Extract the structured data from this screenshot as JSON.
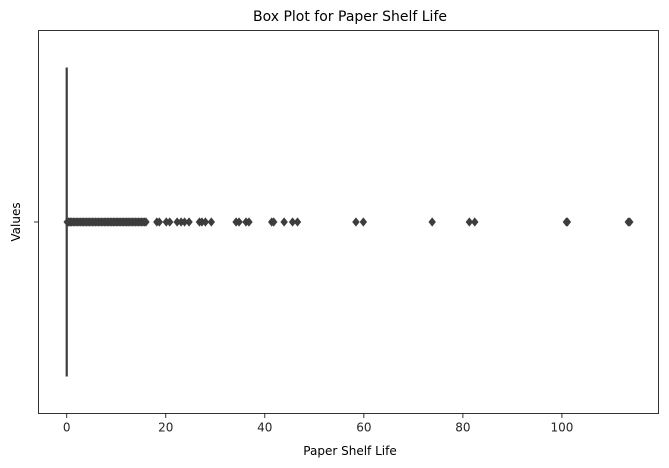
{
  "chart_data": {
    "type": "box",
    "orientation": "horizontal",
    "title": "Box Plot for Paper Shelf Life",
    "xlabel": "Paper Shelf Life",
    "ylabel": "Values",
    "xlim": [
      -5.7,
      119.5
    ],
    "x_ticks": [
      0,
      20,
      40,
      60,
      80,
      100
    ],
    "y_ticks": [
      ""
    ],
    "grid": false,
    "box": {
      "min": 0,
      "q1": 0,
      "median": 0,
      "q3": 0,
      "max": 0.05
    },
    "outlier_color": "#3d3d3d",
    "box_color": "#3d3d3d",
    "outliers": [
      0.1,
      0.3,
      0.5,
      0.8,
      1.0,
      1.3,
      1.6,
      1.9,
      2.2,
      2.5,
      2.8,
      3.1,
      3.4,
      3.7,
      4.0,
      4.3,
      4.6,
      4.9,
      5.2,
      5.5,
      5.8,
      6.1,
      6.4,
      6.7,
      7.0,
      7.3,
      7.6,
      7.9,
      8.2,
      8.5,
      8.8,
      9.1,
      9.4,
      9.7,
      10.0,
      10.3,
      10.6,
      10.9,
      11.2,
      11.5,
      11.8,
      12.1,
      12.4,
      12.7,
      13.0,
      13.3,
      13.6,
      13.9,
      14.2,
      14.5,
      14.8,
      15.1,
      15.4,
      15.7,
      16.0,
      18.2,
      18.7,
      20.1,
      20.8,
      22.3,
      23.1,
      23.8,
      24.7,
      26.8,
      27.3,
      28.0,
      29.2,
      34.2,
      34.8,
      36.2,
      36.8,
      41.4,
      41.8,
      43.9,
      45.6,
      46.6,
      58.4,
      59.9,
      73.8,
      81.3,
      82.4,
      100.9,
      101.1,
      113.4,
      113.7
    ]
  }
}
